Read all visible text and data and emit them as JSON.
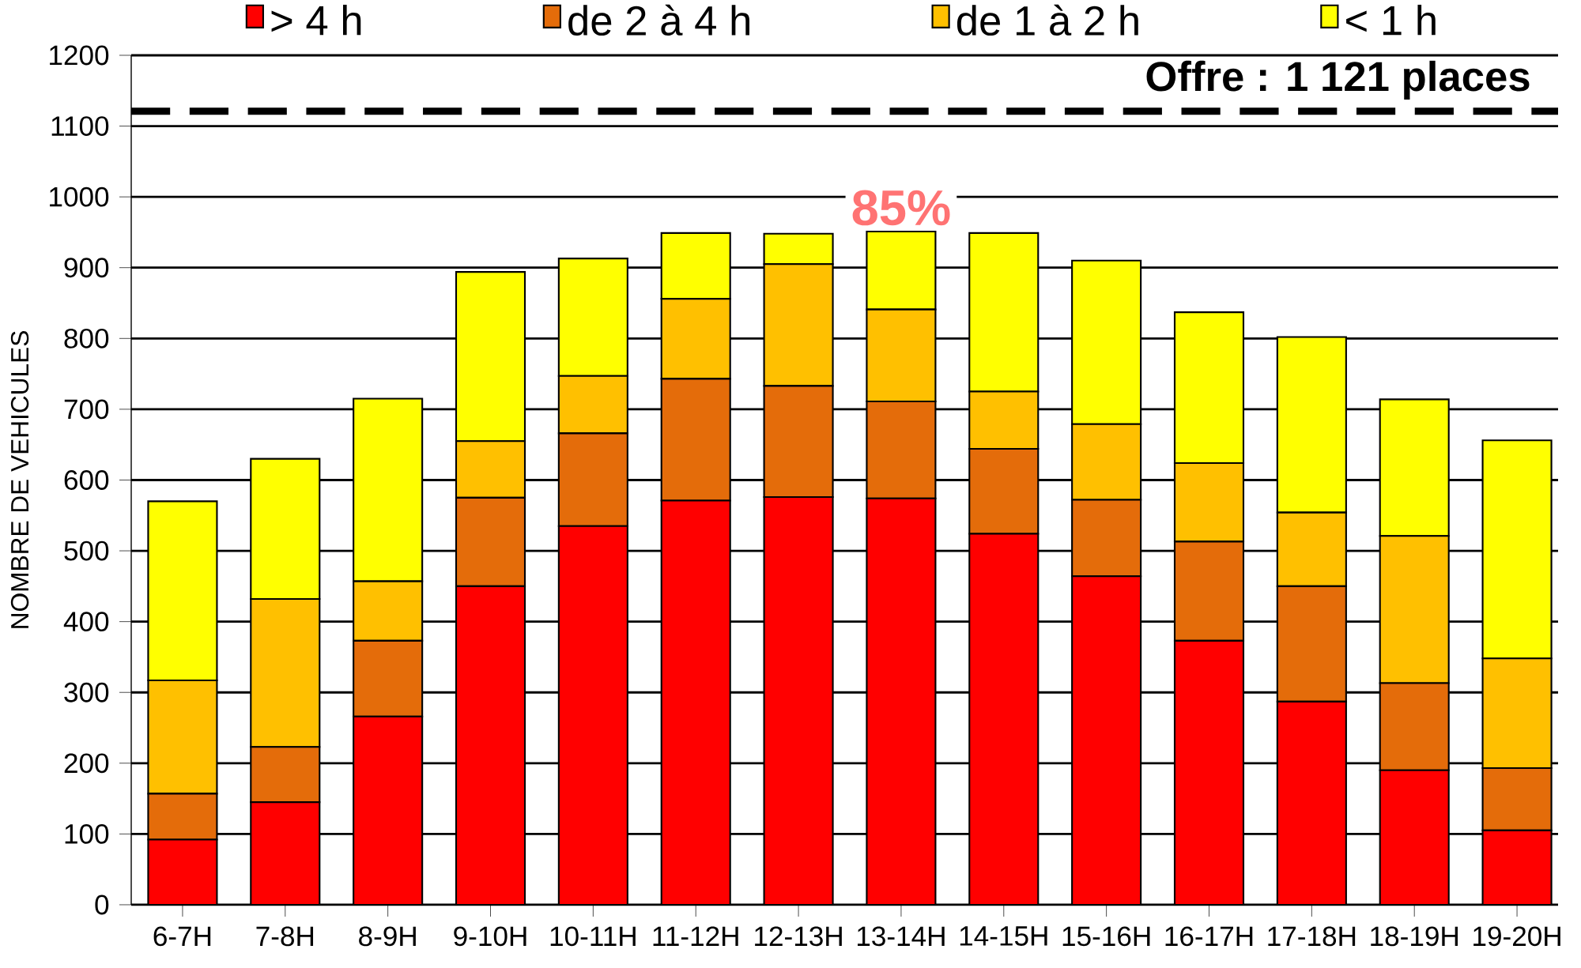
{
  "chart_data": {
    "type": "bar",
    "stacked": true,
    "ylabel": "NOMBRE DE VEHICULES",
    "categories": [
      "6-7H",
      "7-8H",
      "8-9H",
      "9-10H",
      "10-11H",
      "11-12H",
      "12-13H",
      "13-14H",
      "14-15H",
      "15-16H",
      "16-17H",
      "17-18H",
      "18-19H",
      "19-20H"
    ],
    "series": [
      {
        "name": "> 4 h",
        "color": "#ff0000",
        "values": [
          92,
          145,
          266,
          450,
          535,
          571,
          576,
          574,
          524,
          464,
          373,
          287,
          190,
          105
        ]
      },
      {
        "name": "de 2 à 4 h",
        "color": "#e46c0a",
        "values": [
          65,
          78,
          107,
          125,
          131,
          172,
          157,
          137,
          120,
          108,
          140,
          163,
          123,
          88
        ]
      },
      {
        "name": "de 1 à 2 h",
        "color": "#ffc000",
        "values": [
          160,
          209,
          84,
          80,
          81,
          113,
          172,
          130,
          81,
          107,
          111,
          104,
          208,
          155
        ]
      },
      {
        "name": "< 1 h",
        "color": "#ffff00",
        "values": [
          253,
          198,
          258,
          239,
          166,
          93,
          43,
          110,
          224,
          231,
          213,
          248,
          193,
          308
        ]
      }
    ],
    "ylim": [
      0,
      1200
    ],
    "yticks": [
      0,
      100,
      200,
      300,
      400,
      500,
      600,
      700,
      800,
      900,
      1000,
      1100,
      1200
    ],
    "grid": "y",
    "legend": "top",
    "ref_lines": [
      {
        "axis": "y",
        "value": 1121,
        "label": "Offre : 1 121 places",
        "color": "#000000",
        "line_style": "dashed"
      }
    ],
    "annotations": [
      "85%"
    ]
  }
}
